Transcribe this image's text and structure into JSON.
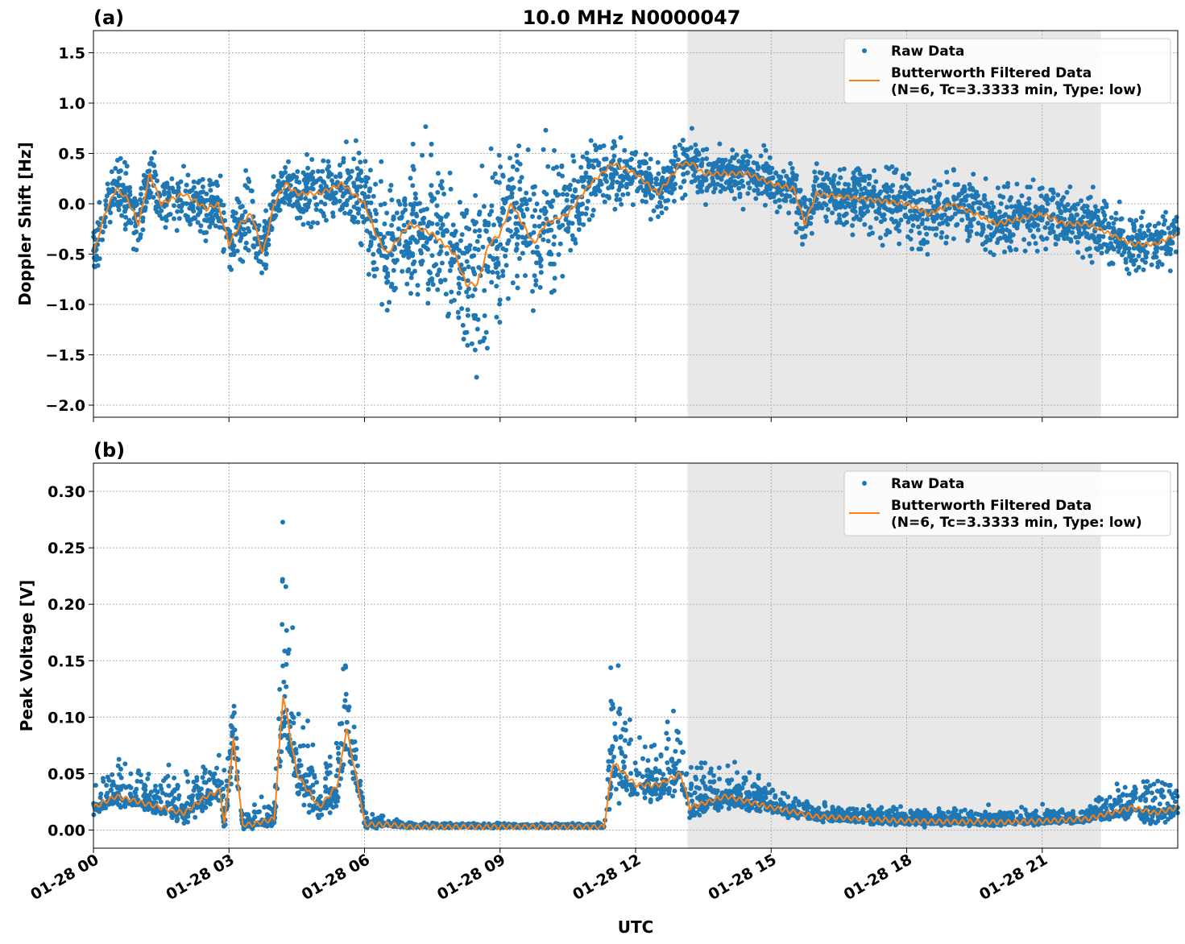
{
  "chart_data": [
    {
      "type": "scatter+line",
      "panel_label": "(a)",
      "title": "10.0 MHz N0000047",
      "ylabel": "Doppler Shift [Hz]",
      "xlabel": "",
      "xlim_hours_utc": [
        0,
        24
      ],
      "ylim": [
        -2.12,
        1.72
      ],
      "yticks": [
        "−2.0",
        "−1.5",
        "−1.0",
        "−0.5",
        "0.0",
        "0.5",
        "1.0",
        "1.5"
      ],
      "ytick_values": [
        -2.0,
        -1.5,
        -1.0,
        -0.5,
        0.0,
        0.5,
        1.0,
        1.5
      ],
      "grid": true,
      "shaded_interval_hours_utc": [
        13.15,
        22.3
      ],
      "legend_position": "top-right",
      "legend": [
        "Raw Data",
        "Butterworth Filtered Data\n(N=6, Tc=3.3333 min, Type: low)"
      ],
      "series": [
        {
          "name": "Butterworth Filtered Data",
          "color": "#ff7f0e",
          "x": [
            0,
            0.25,
            0.5,
            0.75,
            1,
            1.25,
            1.5,
            2,
            2.5,
            2.75,
            3,
            3.25,
            3.5,
            3.75,
            4,
            4.25,
            4.5,
            5,
            5.5,
            6,
            6.25,
            6.5,
            7,
            7.5,
            8,
            8.25,
            8.5,
            8.75,
            9,
            9.25,
            9.5,
            9.75,
            10,
            10.5,
            11,
            11.5,
            12,
            12.5,
            13,
            13.25,
            13.5,
            14,
            14.5,
            15,
            15.5,
            15.75,
            16,
            17,
            18,
            18.5,
            19,
            19.5,
            20,
            21,
            21.5,
            22,
            22.5,
            23,
            23.5,
            24
          ],
          "y": [
            -0.5,
            -0.1,
            0.15,
            0.05,
            -0.2,
            0.3,
            0.0,
            0.1,
            -0.05,
            0.0,
            -0.4,
            -0.2,
            -0.1,
            -0.5,
            0.0,
            0.2,
            0.1,
            0.1,
            0.2,
            0.0,
            -0.3,
            -0.5,
            -0.2,
            -0.3,
            -0.5,
            -0.8,
            -0.8,
            -0.4,
            -0.3,
            0.0,
            -0.2,
            -0.4,
            -0.2,
            -0.1,
            0.2,
            0.4,
            0.3,
            0.1,
            0.4,
            0.4,
            0.3,
            0.3,
            0.3,
            0.2,
            0.15,
            -0.2,
            0.1,
            0.05,
            0.0,
            -0.1,
            0.0,
            -0.1,
            -0.2,
            -0.1,
            -0.2,
            -0.2,
            -0.3,
            -0.4,
            -0.4,
            -0.3
          ]
        },
        {
          "name": "Raw Data",
          "color": "#1f77b4",
          "spread_x": [
            0,
            3,
            3.5,
            4,
            6,
            7,
            8.5,
            10,
            11,
            12,
            13,
            15,
            18,
            22,
            24
          ],
          "spread_y": [
            0.3,
            0.35,
            0.5,
            0.25,
            0.5,
            0.8,
            0.9,
            0.8,
            0.5,
            0.3,
            0.3,
            0.3,
            0.4,
            0.35,
            0.3
          ]
        }
      ]
    },
    {
      "type": "scatter+line",
      "panel_label": "(b)",
      "ylabel": "Peak Voltage [V]",
      "xlabel": "UTC",
      "xlim_hours_utc": [
        0,
        24
      ],
      "ylim": [
        -0.016,
        0.325
      ],
      "yticks": [
        "0.00",
        "0.05",
        "0.10",
        "0.15",
        "0.20",
        "0.25",
        "0.30"
      ],
      "ytick_values": [
        0,
        0.05,
        0.1,
        0.15,
        0.2,
        0.25,
        0.3
      ],
      "xticks": [
        "01-28 00",
        "01-28 03",
        "01-28 06",
        "01-28 09",
        "01-28 12",
        "01-28 15",
        "01-28 18",
        "01-28 21"
      ],
      "xtick_hours": [
        0,
        3,
        6,
        9,
        12,
        15,
        18,
        21
      ],
      "grid": true,
      "shaded_interval_hours_utc": [
        13.15,
        22.3
      ],
      "legend_position": "top-right",
      "legend": [
        "Raw Data",
        "Butterworth Filtered Data\n(N=6, Tc=3.3333 min, Type: low)"
      ],
      "series": [
        {
          "name": "Butterworth Filtered Data",
          "color": "#ff7f0e",
          "x": [
            0,
            0.5,
            1,
            1.5,
            2,
            2.5,
            2.8,
            2.9,
            3.1,
            3.3,
            3.5,
            4,
            4.2,
            4.5,
            5,
            5.4,
            5.6,
            5.9,
            6,
            6.5,
            7,
            11.3,
            11.5,
            12,
            12.5,
            13,
            13.2,
            14,
            15,
            16,
            17,
            18,
            20,
            21,
            22,
            23,
            23.5,
            24
          ],
          "y": [
            0.02,
            0.03,
            0.025,
            0.02,
            0.015,
            0.03,
            0.035,
            0.005,
            0.08,
            0.005,
            0.005,
            0.01,
            0.12,
            0.05,
            0.02,
            0.04,
            0.09,
            0.03,
            0.005,
            0.005,
            0.003,
            0.003,
            0.06,
            0.04,
            0.04,
            0.05,
            0.02,
            0.03,
            0.02,
            0.012,
            0.01,
            0.008,
            0.007,
            0.008,
            0.01,
            0.02,
            0.015,
            0.02
          ]
        },
        {
          "name": "Raw Data",
          "color": "#1f77b4",
          "spread_x": [
            0,
            2.8,
            3.1,
            3.3,
            4,
            4.2,
            4.5,
            5,
            5.6,
            6,
            7,
            11.3,
            11.5,
            12,
            13,
            14,
            16,
            22,
            23.5,
            24
          ],
          "spread_y": [
            0.025,
            0.03,
            0.06,
            0.01,
            0.02,
            0.15,
            0.06,
            0.04,
            0.08,
            0.01,
            0.003,
            0.003,
            0.1,
            0.05,
            0.04,
            0.025,
            0.012,
            0.01,
            0.04,
            0.02
          ]
        }
      ]
    }
  ]
}
